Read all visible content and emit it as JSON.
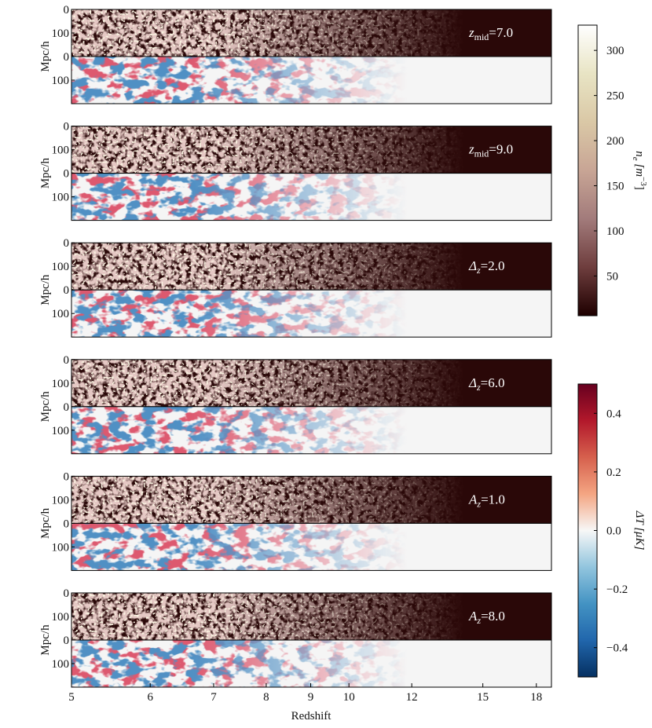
{
  "xlabel": "Redshift",
  "ylabel": "Mpc/h",
  "x_scale": "comoving",
  "xlim": [
    5,
    19
  ],
  "xticks": [
    5,
    6,
    7,
    8,
    9,
    10,
    12,
    15,
    18
  ],
  "ylim": [
    0,
    200
  ],
  "yticks": [
    0,
    100
  ],
  "panels": [
    {
      "symbol": "z",
      "subscript": "mid",
      "text": "=7.0"
    },
    {
      "symbol": "z",
      "subscript": "mid",
      "text": "=9.0"
    },
    {
      "symbol": "Δ",
      "subscript": "z",
      "text": "=2.0"
    },
    {
      "symbol": "Δ",
      "subscript": "z",
      "text": "=6.0"
    },
    {
      "symbol": "A",
      "subscript": "z",
      "text": "=1.0"
    },
    {
      "symbol": "A",
      "subscript": "z",
      "text": "=8.0"
    }
  ],
  "colorbars": [
    {
      "label": [
        "n",
        "e",
        " [m",
        "−3",
        "]"
      ],
      "ylim": [
        6,
        328
      ],
      "yticks": [
        50,
        100,
        150,
        200,
        250,
        300
      ],
      "colors": [
        "#1e0000",
        "#6e3d3d",
        "#a27b7b",
        "#c8a595",
        "#dac8a6",
        "#e8e4c4",
        "#ffffff"
      ]
    },
    {
      "label": [
        "ΔT [μK]"
      ],
      "ylim": [
        -0.5,
        0.5
      ],
      "yticks": [
        {
          "value": -0.4,
          "label": "−0.4"
        },
        {
          "value": -0.2,
          "label": "−0.2"
        },
        {
          "value": 0,
          "label": "0.0"
        },
        0.2,
        0.4
      ],
      "colors": [
        "#053061",
        "#2166ac",
        "#4393c3",
        "#92c5de",
        "#f7f7f7",
        "#f4a582",
        "#d6604d",
        "#b2182b",
        "#67001f"
      ]
    }
  ]
}
